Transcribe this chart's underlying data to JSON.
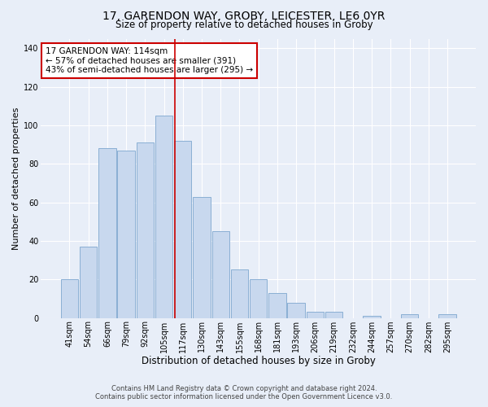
{
  "title": "17, GARENDON WAY, GROBY, LEICESTER, LE6 0YR",
  "subtitle": "Size of property relative to detached houses in Groby",
  "xlabel": "Distribution of detached houses by size in Groby",
  "ylabel": "Number of detached properties",
  "bar_labels": [
    "41sqm",
    "54sqm",
    "66sqm",
    "79sqm",
    "92sqm",
    "105sqm",
    "117sqm",
    "130sqm",
    "143sqm",
    "155sqm",
    "168sqm",
    "181sqm",
    "193sqm",
    "206sqm",
    "219sqm",
    "232sqm",
    "244sqm",
    "257sqm",
    "270sqm",
    "282sqm",
    "295sqm"
  ],
  "bar_values": [
    20,
    37,
    88,
    87,
    91,
    105,
    92,
    63,
    45,
    25,
    20,
    13,
    8,
    3,
    3,
    0,
    1,
    0,
    2,
    0,
    2
  ],
  "bar_color": "#c8d8ee",
  "bar_edge_color": "#8aafd4",
  "vline_color": "#cc0000",
  "vline_x": 5.575,
  "annotation_lines": [
    "17 GARENDON WAY: 114sqm",
    "← 57% of detached houses are smaller (391)",
    "43% of semi-detached houses are larger (295) →"
  ],
  "ylim": [
    0,
    145
  ],
  "yticks": [
    0,
    20,
    40,
    60,
    80,
    100,
    120,
    140
  ],
  "footer_line1": "Contains HM Land Registry data © Crown copyright and database right 2024.",
  "footer_line2": "Contains public sector information licensed under the Open Government Licence v3.0.",
  "title_fontsize": 10,
  "subtitle_fontsize": 8.5,
  "xlabel_fontsize": 8.5,
  "ylabel_fontsize": 8,
  "tick_fontsize": 7,
  "annotation_fontsize": 7.5,
  "footer_fontsize": 6,
  "background_color": "#e8eef8"
}
